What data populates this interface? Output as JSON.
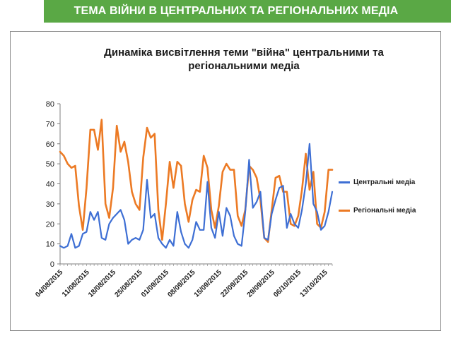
{
  "header": {
    "title": "ТЕМА ВІЙНИ В ЦЕНТРАЛЬНИХ ТА РЕГІОНАЛЬНИХ МЕДІА"
  },
  "colors": {
    "banner": "#5aa845",
    "central": "#3e6fd4",
    "regional": "#ec7a24",
    "axis": "#7f7f7f",
    "text": "#1a1a1a"
  },
  "chart_data": {
    "type": "line",
    "title": "Динаміка висвітлення теми \"війна\" центральними та регіональними медіа",
    "xlabel": "",
    "ylabel": "",
    "ylim": [
      0,
      80
    ],
    "yticks": [
      0,
      10,
      20,
      30,
      40,
      50,
      60,
      70,
      80
    ],
    "grid": false,
    "legend_position": "right",
    "x_start": "04/08/2015",
    "x_end": "15/10/2015",
    "x_tick_labels": [
      "04/08/2015",
      "11/08/2015",
      "18/08/2015",
      "25/08/2015",
      "01/09/2015",
      "08/09/2015",
      "15/09/2015",
      "22/09/2015",
      "29/09/2015",
      "06/10/2015",
      "13/10/2015"
    ],
    "x": [
      "04/08/2015",
      "05/08/2015",
      "06/08/2015",
      "07/08/2015",
      "08/08/2015",
      "09/08/2015",
      "10/08/2015",
      "11/08/2015",
      "12/08/2015",
      "13/08/2015",
      "14/08/2015",
      "15/08/2015",
      "16/08/2015",
      "17/08/2015",
      "18/08/2015",
      "19/08/2015",
      "20/08/2015",
      "21/08/2015",
      "22/08/2015",
      "23/08/2015",
      "24/08/2015",
      "25/08/2015",
      "26/08/2015",
      "27/08/2015",
      "28/08/2015",
      "29/08/2015",
      "30/08/2015",
      "31/08/2015",
      "01/09/2015",
      "02/09/2015",
      "03/09/2015",
      "04/09/2015",
      "05/09/2015",
      "06/09/2015",
      "07/09/2015",
      "08/09/2015",
      "09/09/2015",
      "10/09/2015",
      "11/09/2015",
      "12/09/2015",
      "13/09/2015",
      "14/09/2015",
      "15/09/2015",
      "16/09/2015",
      "17/09/2015",
      "18/09/2015",
      "19/09/2015",
      "20/09/2015",
      "21/09/2015",
      "22/09/2015",
      "23/09/2015",
      "24/09/2015",
      "25/09/2015",
      "26/09/2015",
      "27/09/2015",
      "28/09/2015",
      "29/09/2015",
      "30/09/2015",
      "01/10/2015",
      "02/10/2015",
      "03/10/2015",
      "04/10/2015",
      "05/10/2015",
      "06/10/2015",
      "07/10/2015",
      "08/10/2015",
      "09/10/2015",
      "10/10/2015",
      "11/10/2015",
      "12/10/2015",
      "13/10/2015",
      "14/10/2015",
      "15/10/2015"
    ],
    "series": [
      {
        "name": "Центральні медіа",
        "color": "#3e6fd4",
        "values": [
          9,
          8,
          9,
          15,
          8,
          9,
          15,
          16,
          26,
          22,
          26,
          13,
          12,
          20,
          23,
          25,
          27,
          22,
          10,
          12,
          13,
          12,
          17,
          42,
          23,
          25,
          13,
          10,
          8,
          12,
          9,
          26,
          16,
          10,
          8,
          12,
          21,
          17,
          17,
          41,
          18,
          13,
          26,
          14,
          28,
          24,
          14,
          10,
          9,
          26,
          52,
          28,
          31,
          36,
          13,
          12,
          25,
          32,
          38,
          39,
          18,
          25,
          20,
          18,
          27,
          40,
          60,
          30,
          26,
          17,
          19,
          26,
          36
        ]
      },
      {
        "name": "Регіональні медіа",
        "color": "#ec7a24",
        "values": [
          56,
          54,
          50,
          48,
          49,
          29,
          17,
          38,
          67,
          67,
          57,
          72,
          30,
          23,
          38,
          69,
          56,
          61,
          51,
          36,
          30,
          27,
          53,
          68,
          63,
          65,
          27,
          12,
          30,
          51,
          38,
          51,
          49,
          30,
          21,
          32,
          37,
          36,
          54,
          48,
          27,
          18,
          29,
          46,
          50,
          47,
          47,
          24,
          19,
          27,
          49,
          47,
          43,
          32,
          13,
          11,
          27,
          43,
          44,
          36,
          36,
          20,
          19,
          24,
          37,
          55,
          37,
          46,
          20,
          18,
          26,
          47,
          47
        ]
      }
    ]
  }
}
